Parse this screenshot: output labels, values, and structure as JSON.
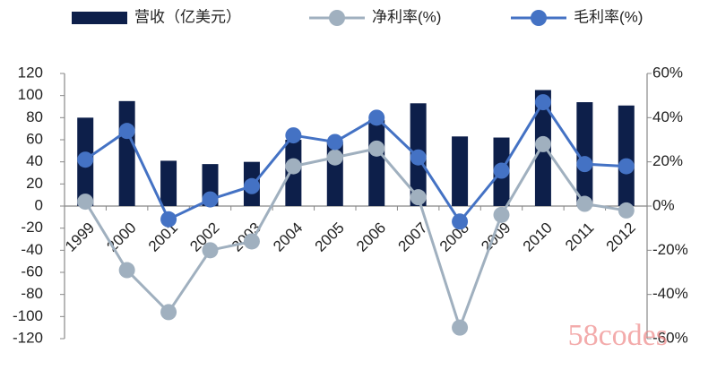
{
  "chart_data": {
    "type": "bar_line",
    "categories": [
      "1999",
      "2000",
      "2001",
      "2002",
      "2003",
      "2004",
      "2005",
      "2006",
      "2007",
      "2008",
      "2009",
      "2010",
      "2011",
      "2012"
    ],
    "series": [
      {
        "name": "营收（亿美元）",
        "type": "bar",
        "color": "#0d1f4a",
        "values": [
          80,
          95,
          41,
          38,
          40,
          60,
          58,
          78,
          93,
          63,
          62,
          105,
          94,
          91
        ]
      },
      {
        "name": "净利率(%)",
        "type": "line",
        "axis": "y2",
        "color": "#a0b0bf",
        "values": [
          2,
          -29,
          -48,
          -20,
          -16,
          18,
          22,
          26,
          4,
          -55,
          -4,
          28,
          1,
          -2
        ]
      },
      {
        "name": "毛利率(%)",
        "type": "line",
        "axis": "y2",
        "color": "#4472c4",
        "values": [
          21,
          34,
          -6,
          3,
          9,
          32,
          29,
          40,
          22,
          -7,
          16,
          47,
          19,
          18
        ]
      }
    ],
    "ylim": [
      -120,
      120
    ],
    "yticks": [
      -120,
      -100,
      -80,
      -60,
      -40,
      -20,
      0,
      20,
      40,
      60,
      80,
      100,
      120
    ],
    "y2lim": [
      -60,
      60
    ],
    "y2ticks": [
      {
        "value": -60,
        "label": "-60%"
      },
      {
        "value": -40,
        "label": "-40%"
      },
      {
        "value": -20,
        "label": "-20%"
      },
      {
        "value": 0,
        "label": "0%"
      },
      {
        "value": 20,
        "label": "20%"
      },
      {
        "value": 40,
        "label": "40%"
      },
      {
        "value": 60,
        "label": "60%"
      }
    ],
    "legend": "top",
    "watermark": "58codes"
  }
}
